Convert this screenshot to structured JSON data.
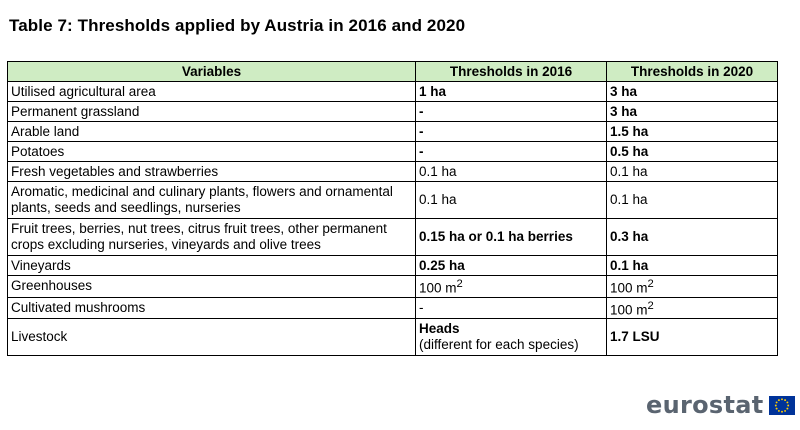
{
  "title": "Table 7: Thresholds applied by Austria in 2016 and 2020",
  "table": {
    "headers": [
      "Variables",
      "Thresholds in 2016",
      "Thresholds in 2020"
    ],
    "rows": [
      {
        "variable": "Utilised agricultural area",
        "t2016": "1 ha",
        "t2020": "3 ha"
      },
      {
        "variable": "Permanent grassland",
        "t2016": "-",
        "t2020": "3 ha"
      },
      {
        "variable": "Arable land",
        "t2016": "-",
        "t2020": "1.5 ha"
      },
      {
        "variable": "Potatoes",
        "t2016": "-",
        "t2020": "0.5 ha"
      },
      {
        "variable": "Fresh vegetables and strawberries",
        "t2016": "0.1 ha",
        "t2020": "0.1 ha"
      },
      {
        "variable": "Aromatic, medicinal and culinary plants, flowers and ornamental plants, seeds and seedlings, nurseries",
        "t2016": "0.1 ha",
        "t2020": "0.1 ha"
      },
      {
        "variable": "Fruit trees, berries, nut trees, citrus fruit trees, other permanent crops excluding nurseries, vineyards and olive trees",
        "t2016": "0.15 ha or 0.1 ha berries",
        "t2020": "0.3 ha"
      },
      {
        "variable": "Vineyards",
        "t2016": "0.25 ha",
        "t2020": "0.1 ha"
      },
      {
        "variable": "Greenhouses",
        "t2016": "100 m",
        "t2016_sup": "2",
        "t2020": "100 m",
        "t2020_sup": "2"
      },
      {
        "variable": "Cultivated mushrooms",
        "t2016": "-",
        "t2020": "100 m",
        "t2020_sup": "2"
      },
      {
        "variable": "Livestock",
        "t2016": "Heads",
        "t2016_note": "(different for each species)",
        "t2020": "1.7 LSU"
      }
    ]
  },
  "logo": {
    "text": "eurostat",
    "icon": "eu-flag-icon",
    "flag_color": "#003399",
    "star_color": "#ffcc00"
  },
  "colors": {
    "header_bg": "#cfecc3",
    "logo_text": "#5a6470"
  }
}
